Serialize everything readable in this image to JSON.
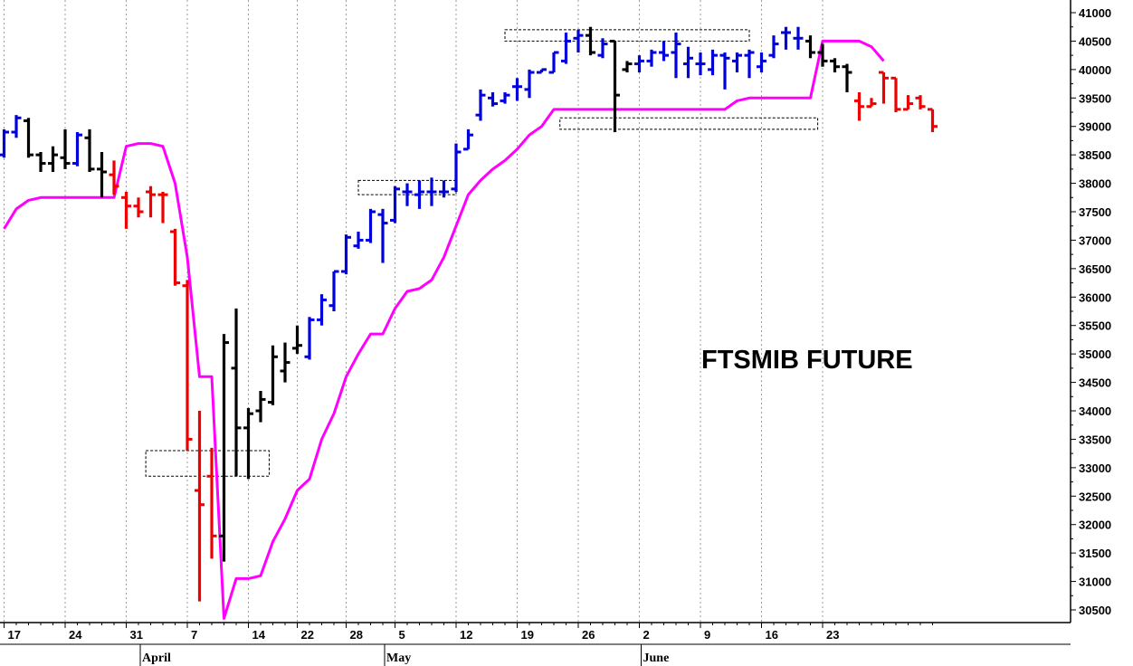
{
  "chart_data": {
    "type": "ohlc",
    "title": "FTSMIB FUTURE",
    "grid": true,
    "ylim": [
      30300,
      41100
    ],
    "y_ticks": [
      30500,
      31000,
      31500,
      32000,
      32500,
      33000,
      33500,
      34000,
      34500,
      35000,
      35500,
      36000,
      36500,
      37000,
      37500,
      38000,
      38500,
      39000,
      39500,
      40000,
      40500,
      41000
    ],
    "x_ticks": [
      {
        "label": "17",
        "i": 0
      },
      {
        "label": "24",
        "i": 5
      },
      {
        "label": "31",
        "i": 10
      },
      {
        "label": "7",
        "i": 15
      },
      {
        "label": "14",
        "i": 20
      },
      {
        "label": "22",
        "i": 24
      },
      {
        "label": "28",
        "i": 28
      },
      {
        "label": "5",
        "i": 32
      },
      {
        "label": "12",
        "i": 37
      },
      {
        "label": "19",
        "i": 42
      },
      {
        "label": "26",
        "i": 47
      },
      {
        "label": "2",
        "i": 52
      },
      {
        "label": "9",
        "i": 57
      },
      {
        "label": "16",
        "i": 62
      },
      {
        "label": "23",
        "i": 67
      }
    ],
    "months": [
      {
        "label": "April",
        "i": 11
      },
      {
        "label": "May",
        "i": 31
      },
      {
        "label": "June",
        "i": 52
      }
    ],
    "colors": {
      "up": "#0000dd",
      "down": "#ee0000",
      "neutral": "#000000",
      "stop": "#ff00ff",
      "grid": "#9a9a9a"
    },
    "bars": [
      {
        "i": 0,
        "o": 38500,
        "h": 38950,
        "l": 38450,
        "c": 38900,
        "color": "up"
      },
      {
        "i": 1,
        "o": 38900,
        "h": 39200,
        "l": 38800,
        "c": 39150,
        "color": "up"
      },
      {
        "i": 2,
        "o": 39100,
        "h": 39150,
        "l": 38450,
        "c": 38500,
        "color": "neutral"
      },
      {
        "i": 3,
        "o": 38500,
        "h": 38550,
        "l": 38200,
        "c": 38350,
        "color": "neutral"
      },
      {
        "i": 4,
        "o": 38350,
        "h": 38650,
        "l": 38200,
        "c": 38500,
        "color": "neutral"
      },
      {
        "i": 5,
        "o": 38450,
        "h": 38950,
        "l": 38250,
        "c": 38350,
        "color": "neutral"
      },
      {
        "i": 6,
        "o": 38350,
        "h": 38900,
        "l": 38300,
        "c": 38850,
        "color": "up"
      },
      {
        "i": 7,
        "o": 38800,
        "h": 38950,
        "l": 38200,
        "c": 38250,
        "color": "neutral"
      },
      {
        "i": 8,
        "o": 38250,
        "h": 38550,
        "l": 37750,
        "c": 38200,
        "color": "neutral"
      },
      {
        "i": 9,
        "o": 38150,
        "h": 38400,
        "l": 37800,
        "c": 37950,
        "color": "down"
      },
      {
        "i": 10,
        "o": 37750,
        "h": 37850,
        "l": 37200,
        "c": 37600,
        "color": "down"
      },
      {
        "i": 11,
        "o": 37600,
        "h": 37750,
        "l": 37400,
        "c": 37500,
        "color": "down"
      },
      {
        "i": 12,
        "o": 37850,
        "h": 37950,
        "l": 37400,
        "c": 37800,
        "color": "down"
      },
      {
        "i": 13,
        "o": 37800,
        "h": 37850,
        "l": 37300,
        "c": 37800,
        "color": "down"
      },
      {
        "i": 14,
        "o": 37150,
        "h": 37200,
        "l": 36200,
        "c": 36250,
        "color": "down"
      },
      {
        "i": 15,
        "o": 36200,
        "h": 36300,
        "l": 33300,
        "c": 33500,
        "color": "down"
      },
      {
        "i": 16,
        "o": 32600,
        "h": 34000,
        "l": 30650,
        "c": 32350,
        "color": "down"
      },
      {
        "i": 17,
        "o": 32850,
        "h": 33350,
        "l": 31400,
        "c": 31800,
        "color": "down"
      },
      {
        "i": 18,
        "o": 31800,
        "h": 35350,
        "l": 31350,
        "c": 35200,
        "color": "neutral"
      },
      {
        "i": 19,
        "o": 34750,
        "h": 35800,
        "l": 32850,
        "c": 33700,
        "color": "neutral"
      },
      {
        "i": 20,
        "o": 33700,
        "h": 34050,
        "l": 32800,
        "c": 33950,
        "color": "neutral"
      },
      {
        "i": 21,
        "o": 34000,
        "h": 34350,
        "l": 33800,
        "c": 34200,
        "color": "neutral"
      },
      {
        "i": 22,
        "o": 34150,
        "h": 35150,
        "l": 34100,
        "c": 34950,
        "color": "neutral"
      },
      {
        "i": 23,
        "o": 34700,
        "h": 35200,
        "l": 34500,
        "c": 34850,
        "color": "neutral"
      },
      {
        "i": 24,
        "o": 35100,
        "h": 35500,
        "l": 35000,
        "c": 35150,
        "color": "neutral"
      },
      {
        "i": 25,
        "o": 34950,
        "h": 35650,
        "l": 34900,
        "c": 35600,
        "color": "up"
      },
      {
        "i": 26,
        "o": 35600,
        "h": 36050,
        "l": 35500,
        "c": 35950,
        "color": "up"
      },
      {
        "i": 27,
        "o": 35850,
        "h": 36450,
        "l": 35750,
        "c": 36450,
        "color": "up"
      },
      {
        "i": 28,
        "o": 36450,
        "h": 37100,
        "l": 36400,
        "c": 37050,
        "color": "up"
      },
      {
        "i": 29,
        "o": 36900,
        "h": 37150,
        "l": 36850,
        "c": 37000,
        "color": "up"
      },
      {
        "i": 30,
        "o": 37000,
        "h": 37550,
        "l": 36950,
        "c": 37500,
        "color": "up"
      },
      {
        "i": 31,
        "o": 37450,
        "h": 37550,
        "l": 36600,
        "c": 37300,
        "color": "up"
      },
      {
        "i": 32,
        "o": 37350,
        "h": 37950,
        "l": 37300,
        "c": 37900,
        "color": "up"
      },
      {
        "i": 33,
        "o": 37850,
        "h": 38000,
        "l": 37600,
        "c": 37850,
        "color": "up"
      },
      {
        "i": 34,
        "o": 37800,
        "h": 38050,
        "l": 37550,
        "c": 37850,
        "color": "up"
      },
      {
        "i": 35,
        "o": 37850,
        "h": 38100,
        "l": 37600,
        "c": 37850,
        "color": "up"
      },
      {
        "i": 36,
        "o": 37850,
        "h": 38050,
        "l": 37750,
        "c": 37850,
        "color": "up"
      },
      {
        "i": 37,
        "o": 37900,
        "h": 38700,
        "l": 37850,
        "c": 38550,
        "color": "up"
      },
      {
        "i": 38,
        "o": 38600,
        "h": 38950,
        "l": 38600,
        "c": 38850,
        "color": "up"
      },
      {
        "i": 39,
        "o": 39200,
        "h": 39650,
        "l": 39100,
        "c": 39550,
        "color": "up"
      },
      {
        "i": 40,
        "o": 39500,
        "h": 39600,
        "l": 39350,
        "c": 39400,
        "color": "up"
      },
      {
        "i": 41,
        "o": 39450,
        "h": 39600,
        "l": 39400,
        "c": 39550,
        "color": "up"
      },
      {
        "i": 42,
        "o": 39700,
        "h": 39850,
        "l": 39450,
        "c": 39700,
        "color": "up"
      },
      {
        "i": 43,
        "o": 39650,
        "h": 40000,
        "l": 39500,
        "c": 39950,
        "color": "up"
      },
      {
        "i": 44,
        "o": 39950,
        "h": 40000,
        "l": 39950,
        "c": 40000,
        "color": "up"
      },
      {
        "i": 45,
        "o": 39950,
        "h": 40300,
        "l": 39950,
        "c": 40300,
        "color": "up"
      },
      {
        "i": 46,
        "o": 40150,
        "h": 40650,
        "l": 40100,
        "c": 40500,
        "color": "up"
      },
      {
        "i": 47,
        "o": 40550,
        "h": 40700,
        "l": 40300,
        "c": 40600,
        "color": "up"
      },
      {
        "i": 48,
        "o": 40600,
        "h": 40750,
        "l": 40250,
        "c": 40300,
        "color": "neutral"
      },
      {
        "i": 49,
        "o": 40250,
        "h": 40550,
        "l": 40200,
        "c": 40450,
        "color": "up"
      },
      {
        "i": 50,
        "o": 40500,
        "h": 40500,
        "l": 38900,
        "c": 39550,
        "color": "neutral"
      },
      {
        "i": 51,
        "o": 40000,
        "h": 40150,
        "l": 39950,
        "c": 40100,
        "color": "neutral"
      },
      {
        "i": 52,
        "o": 40100,
        "h": 40250,
        "l": 39950,
        "c": 40150,
        "color": "up"
      },
      {
        "i": 53,
        "o": 40150,
        "h": 40350,
        "l": 40050,
        "c": 40300,
        "color": "up"
      },
      {
        "i": 54,
        "o": 40300,
        "h": 40500,
        "l": 40150,
        "c": 40250,
        "color": "up"
      },
      {
        "i": 55,
        "o": 40300,
        "h": 40650,
        "l": 39850,
        "c": 40450,
        "color": "up"
      },
      {
        "i": 56,
        "o": 40100,
        "h": 40400,
        "l": 39850,
        "c": 40200,
        "color": "up"
      },
      {
        "i": 57,
        "o": 40100,
        "h": 40300,
        "l": 39900,
        "c": 40100,
        "color": "up"
      },
      {
        "i": 58,
        "o": 40000,
        "h": 40350,
        "l": 39900,
        "c": 40250,
        "color": "up"
      },
      {
        "i": 59,
        "o": 40250,
        "h": 40300,
        "l": 39650,
        "c": 40200,
        "color": "up"
      },
      {
        "i": 60,
        "o": 40150,
        "h": 40300,
        "l": 39950,
        "c": 40250,
        "color": "up"
      },
      {
        "i": 61,
        "o": 40250,
        "h": 40350,
        "l": 39850,
        "c": 40300,
        "color": "up"
      },
      {
        "i": 62,
        "o": 40050,
        "h": 40300,
        "l": 39950,
        "c": 40150,
        "color": "up"
      },
      {
        "i": 63,
        "o": 40250,
        "h": 40600,
        "l": 40200,
        "c": 40450,
        "color": "up"
      },
      {
        "i": 64,
        "o": 40650,
        "h": 40750,
        "l": 40350,
        "c": 40650,
        "color": "up"
      },
      {
        "i": 65,
        "o": 40550,
        "h": 40750,
        "l": 40350,
        "c": 40550,
        "color": "up"
      },
      {
        "i": 66,
        "o": 40500,
        "h": 40600,
        "l": 40200,
        "c": 40300,
        "color": "neutral"
      },
      {
        "i": 67,
        "o": 40300,
        "h": 40450,
        "l": 40050,
        "c": 40150,
        "color": "neutral"
      },
      {
        "i": 68,
        "o": 40150,
        "h": 40200,
        "l": 39950,
        "c": 40050,
        "color": "neutral"
      },
      {
        "i": 69,
        "o": 40050,
        "h": 40100,
        "l": 39600,
        "c": 39950,
        "color": "neutral"
      },
      {
        "i": 70,
        "o": 39450,
        "h": 39600,
        "l": 39100,
        "c": 39350,
        "color": "down"
      },
      {
        "i": 71,
        "o": 39350,
        "h": 39500,
        "l": 39350,
        "c": 39400,
        "color": "down"
      },
      {
        "i": 72,
        "o": 39950,
        "h": 39950,
        "l": 39400,
        "c": 39850,
        "color": "down"
      },
      {
        "i": 73,
        "o": 39850,
        "h": 39850,
        "l": 39250,
        "c": 39300,
        "color": "down"
      },
      {
        "i": 74,
        "o": 39300,
        "h": 39550,
        "l": 39300,
        "c": 39400,
        "color": "down"
      },
      {
        "i": 75,
        "o": 39500,
        "h": 39550,
        "l": 39300,
        "c": 39350,
        "color": "down"
      },
      {
        "i": 76,
        "o": 39300,
        "h": 39300,
        "l": 38900,
        "c": 39000,
        "color": "down"
      }
    ],
    "stop_line": [
      {
        "i": 0,
        "y": 37200
      },
      {
        "i": 1,
        "y": 37550
      },
      {
        "i": 2,
        "y": 37700
      },
      {
        "i": 3,
        "y": 37750
      },
      {
        "i": 9,
        "y": 37750
      },
      {
        "i": 10,
        "y": 38650
      },
      {
        "i": 11,
        "y": 38700
      },
      {
        "i": 12,
        "y": 38700
      },
      {
        "i": 13,
        "y": 38650
      },
      {
        "i": 14,
        "y": 38000
      },
      {
        "i": 15,
        "y": 36700
      },
      {
        "i": 16,
        "y": 34600
      },
      {
        "i": 17,
        "y": 34600
      },
      {
        "i": 18,
        "y": 30350
      },
      {
        "i": 19,
        "y": 31050
      },
      {
        "i": 20,
        "y": 31050
      },
      {
        "i": 21,
        "y": 31100
      },
      {
        "i": 22,
        "y": 31700
      },
      {
        "i": 23,
        "y": 32100
      },
      {
        "i": 24,
        "y": 32600
      },
      {
        "i": 25,
        "y": 32800
      },
      {
        "i": 26,
        "y": 33500
      },
      {
        "i": 27,
        "y": 33950
      },
      {
        "i": 28,
        "y": 34600
      },
      {
        "i": 29,
        "y": 35000
      },
      {
        "i": 30,
        "y": 35350
      },
      {
        "i": 31,
        "y": 35350
      },
      {
        "i": 32,
        "y": 35800
      },
      {
        "i": 33,
        "y": 36100
      },
      {
        "i": 34,
        "y": 36150
      },
      {
        "i": 35,
        "y": 36300
      },
      {
        "i": 36,
        "y": 36700
      },
      {
        "i": 37,
        "y": 37250
      },
      {
        "i": 38,
        "y": 37800
      },
      {
        "i": 39,
        "y": 38050
      },
      {
        "i": 40,
        "y": 38250
      },
      {
        "i": 41,
        "y": 38400
      },
      {
        "i": 42,
        "y": 38600
      },
      {
        "i": 43,
        "y": 38850
      },
      {
        "i": 44,
        "y": 39000
      },
      {
        "i": 45,
        "y": 39300
      },
      {
        "i": 46,
        "y": 39300
      },
      {
        "i": 59,
        "y": 39300
      },
      {
        "i": 60,
        "y": 39450
      },
      {
        "i": 61,
        "y": 39500
      },
      {
        "i": 66,
        "y": 39500
      },
      {
        "i": 67,
        "y": 40500
      },
      {
        "i": 68,
        "y": 40500
      },
      {
        "i": 69,
        "y": 40500
      },
      {
        "i": 70,
        "y": 40500
      },
      {
        "i": 71,
        "y": 40400
      },
      {
        "i": 72,
        "y": 40150
      }
    ],
    "boxes": [
      {
        "i0": 11.6,
        "i1": 21.7,
        "y0": 32850,
        "y1": 33300
      },
      {
        "i0": 29.0,
        "i1": 37.0,
        "y0": 37800,
        "y1": 38050
      },
      {
        "i0": 41.0,
        "i1": 61.0,
        "y0": 40500,
        "y1": 40700
      },
      {
        "i0": 45.5,
        "i1": 66.6,
        "y0": 38950,
        "y1": 39150
      }
    ]
  }
}
